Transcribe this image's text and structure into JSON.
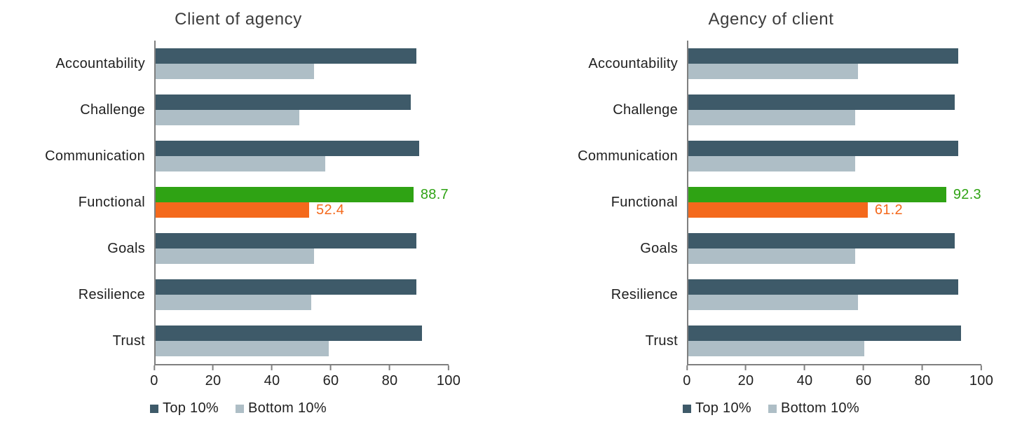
{
  "colors": {
    "top10": "#3e5a69",
    "bottom10": "#aebec6",
    "highlight_top": "#2fa314",
    "highlight_bottom": "#f4691c",
    "axis": "#7f7f7f",
    "title_text": "#3d3d3d",
    "label_text": "#1f1f1f"
  },
  "chart_data": [
    {
      "type": "bar",
      "orientation": "horizontal",
      "title": "Client of agency",
      "categories": [
        "Accountability",
        "Challenge",
        "Communication",
        "Functional",
        "Goals",
        "Resilience",
        "Trust"
      ],
      "series": [
        {
          "name": "Top 10%",
          "values": [
            89,
            87,
            90,
            88.7,
            89,
            89,
            91
          ]
        },
        {
          "name": "Bottom 10%",
          "values": [
            54,
            49,
            58,
            52.4,
            54,
            53,
            59
          ]
        }
      ],
      "highlight": {
        "category": "Functional",
        "labels": [
          "88.7",
          "52.4"
        ]
      },
      "xlim": [
        0,
        100
      ],
      "xticks": [
        0,
        20,
        40,
        60,
        80,
        100
      ],
      "legend_position": "bottom",
      "grid": false
    },
    {
      "type": "bar",
      "orientation": "horizontal",
      "title": "Agency of client",
      "categories": [
        "Accountability",
        "Challenge",
        "Communication",
        "Functional",
        "Goals",
        "Resilience",
        "Trust"
      ],
      "series": [
        {
          "name": "Top 10%",
          "values": [
            92,
            91,
            92,
            92.3,
            91,
            92,
            93
          ]
        },
        {
          "name": "Bottom 10%",
          "values": [
            58,
            57,
            57,
            61.2,
            57,
            58,
            60
          ]
        }
      ],
      "highlight": {
        "category": "Functional",
        "labels": [
          "92.3",
          "61.2"
        ]
      },
      "xlim": [
        0,
        100
      ],
      "xticks": [
        0,
        20,
        40,
        60,
        80,
        100
      ],
      "legend_position": "bottom",
      "grid": false
    }
  ]
}
